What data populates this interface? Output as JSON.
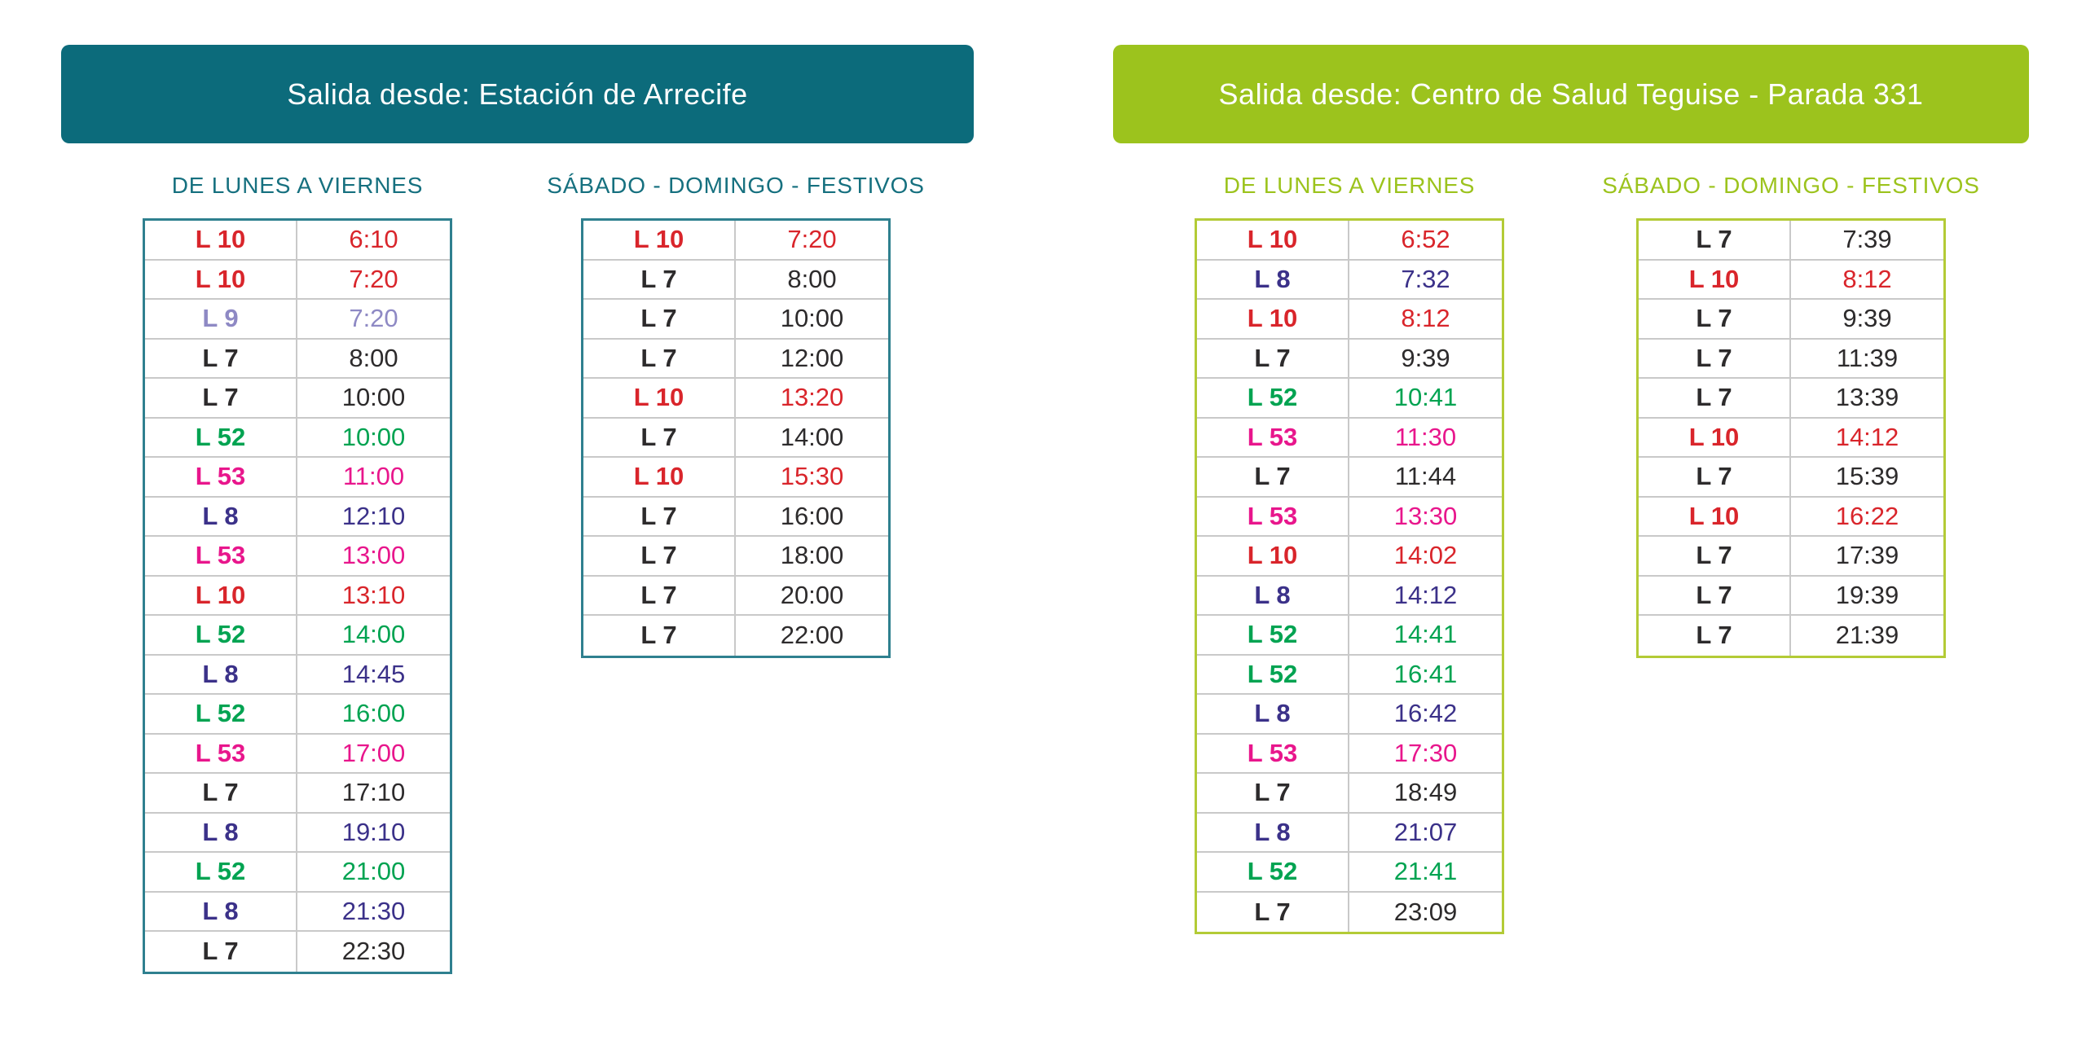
{
  "theme": {
    "teal": "#0C6B7B",
    "teal_text": "#16707F",
    "teal_border": "#2F808F",
    "lime": "#9CC31D",
    "lime_border": "#B3CB36",
    "separator": "#C9C9C9",
    "background": "#FFFFFF"
  },
  "line_colors": {
    "L 7": "#2D2B2C",
    "L 8": "#3B3189",
    "L 9": "#8E89C4",
    "L 10": "#D9252B",
    "L 52": "#00A351",
    "L 53": "#E8168C"
  },
  "arrecife": {
    "title": "Salida desde: Estación de Arrecife",
    "weekday_label": "DE LUNES A VIERNES",
    "weekend_label": "SÁBADO - DOMINGO - FESTIVOS",
    "weekday_rows": [
      {
        "line": "L 10",
        "time": "6:10"
      },
      {
        "line": "L 10",
        "time": "7:20"
      },
      {
        "line": "L 9",
        "time": "7:20"
      },
      {
        "line": "L 7",
        "time": "8:00"
      },
      {
        "line": "L 7",
        "time": "10:00"
      },
      {
        "line": "L 52",
        "time": "10:00"
      },
      {
        "line": "L 53",
        "time": "11:00"
      },
      {
        "line": "L 8",
        "time": "12:10"
      },
      {
        "line": "L 53",
        "time": "13:00"
      },
      {
        "line": "L 10",
        "time": "13:10"
      },
      {
        "line": "L 52",
        "time": "14:00"
      },
      {
        "line": "L 8",
        "time": "14:45"
      },
      {
        "line": "L 52",
        "time": "16:00"
      },
      {
        "line": "L 53",
        "time": "17:00"
      },
      {
        "line": "L 7",
        "time": "17:10"
      },
      {
        "line": "L 8",
        "time": "19:10"
      },
      {
        "line": "L 52",
        "time": "21:00"
      },
      {
        "line": "L 8",
        "time": "21:30"
      },
      {
        "line": "L 7",
        "time": "22:30"
      }
    ],
    "weekend_rows": [
      {
        "line": "L 10",
        "time": "7:20"
      },
      {
        "line": "L 7",
        "time": "8:00"
      },
      {
        "line": "L 7",
        "time": "10:00"
      },
      {
        "line": "L 7",
        "time": "12:00"
      },
      {
        "line": "L 10",
        "time": "13:20"
      },
      {
        "line": "L 7",
        "time": "14:00"
      },
      {
        "line": "L 10",
        "time": "15:30"
      },
      {
        "line": "L 7",
        "time": "16:00"
      },
      {
        "line": "L 7",
        "time": "18:00"
      },
      {
        "line": "L 7",
        "time": "20:00"
      },
      {
        "line": "L 7",
        "time": "22:00"
      }
    ]
  },
  "teguise": {
    "title": "Salida desde: Centro de Salud Teguise - Parada 331",
    "weekday_label": "DE LUNES A VIERNES",
    "weekend_label": "SÁBADO - DOMINGO - FESTIVOS",
    "weekday_rows": [
      {
        "line": "L 10",
        "time": "6:52"
      },
      {
        "line": "L 8",
        "time": "7:32"
      },
      {
        "line": "L 10",
        "time": "8:12"
      },
      {
        "line": "L 7",
        "time": "9:39"
      },
      {
        "line": "L 52",
        "time": "10:41"
      },
      {
        "line": "L 53",
        "time": "11:30"
      },
      {
        "line": "L 7",
        "time": "11:44"
      },
      {
        "line": "L 53",
        "time": "13:30"
      },
      {
        "line": "L 10",
        "time": "14:02"
      },
      {
        "line": "L 8",
        "time": "14:12"
      },
      {
        "line": "L 52",
        "time": "14:41"
      },
      {
        "line": "L 52",
        "time": "16:41"
      },
      {
        "line": "L 8",
        "time": "16:42"
      },
      {
        "line": "L 53",
        "time": "17:30"
      },
      {
        "line": "L 7",
        "time": "18:49"
      },
      {
        "line": "L 8",
        "time": "21:07"
      },
      {
        "line": "L 52",
        "time": "21:41"
      },
      {
        "line": "L 7",
        "time": "23:09"
      }
    ],
    "weekend_rows": [
      {
        "line": "L 7",
        "time": "7:39"
      },
      {
        "line": "L 10",
        "time": "8:12"
      },
      {
        "line": "L 7",
        "time": "9:39"
      },
      {
        "line": "L 7",
        "time": "11:39"
      },
      {
        "line": "L 7",
        "time": "13:39"
      },
      {
        "line": "L 10",
        "time": "14:12"
      },
      {
        "line": "L 7",
        "time": "15:39"
      },
      {
        "line": "L 10",
        "time": "16:22"
      },
      {
        "line": "L 7",
        "time": "17:39"
      },
      {
        "line": "L 7",
        "time": "19:39"
      },
      {
        "line": "L 7",
        "time": "21:39"
      }
    ]
  }
}
